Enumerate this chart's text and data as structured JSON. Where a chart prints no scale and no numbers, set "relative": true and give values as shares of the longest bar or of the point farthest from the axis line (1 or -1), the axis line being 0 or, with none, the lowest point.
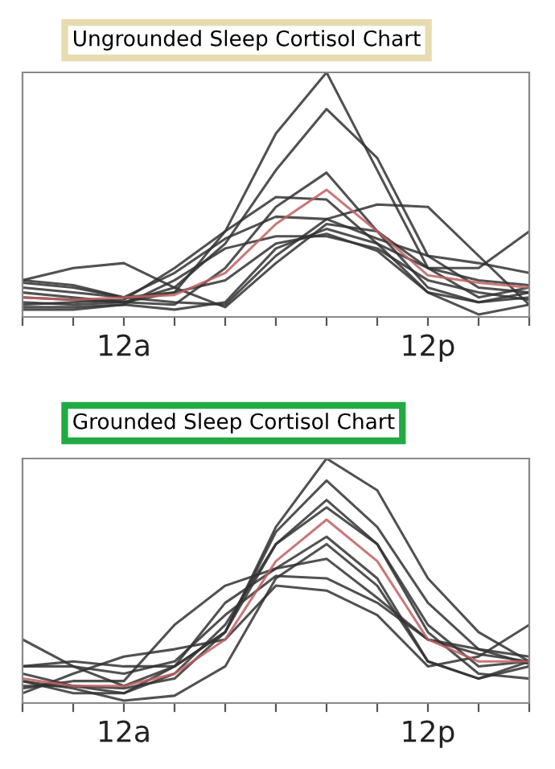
{
  "chart_data": [
    {
      "type": "line",
      "title": "Ungrounded Sleep Cortisol Chart",
      "relative": true,
      "tick_labels": "x",
      "grid": false,
      "legend": false,
      "marker": "none",
      "line_style": "solid",
      "categories": [
        null,
        null,
        "12a",
        null,
        null,
        null,
        null,
        null,
        "12p",
        null,
        null
      ],
      "series": [
        {
          "color": "#333333",
          "values": [
            0.14,
            0.12,
            0.08,
            0.1,
            0.35,
            0.75,
            1.0,
            0.6,
            0.2,
            0.08,
            0.12
          ]
        },
        {
          "color": "#333333",
          "values": [
            0.06,
            0.05,
            0.06,
            0.12,
            0.3,
            0.6,
            0.85,
            0.65,
            0.25,
            0.12,
            0.1
          ]
        },
        {
          "color": "#333333",
          "values": [
            0.08,
            0.07,
            0.06,
            0.05,
            0.2,
            0.45,
            0.59,
            0.35,
            0.12,
            0.06,
            0.08
          ]
        },
        {
          "color": "#333333",
          "values": [
            0.15,
            0.13,
            0.08,
            0.06,
            0.05,
            0.25,
            0.4,
            0.46,
            0.45,
            0.25,
            0.05
          ]
        },
        {
          "color": "#333333",
          "values": [
            0.05,
            0.06,
            0.07,
            0.2,
            0.35,
            0.49,
            0.48,
            0.3,
            0.2,
            0.2,
            0.35
          ]
        },
        {
          "color": "#333333",
          "values": [
            0.12,
            0.1,
            0.08,
            0.18,
            0.32,
            0.41,
            0.4,
            0.32,
            0.25,
            0.22,
            0.18
          ]
        },
        {
          "color": "#333333",
          "values": [
            0.15,
            0.2,
            0.22,
            0.12,
            0.04,
            0.22,
            0.38,
            0.35,
            0.2,
            0.15,
            0.13
          ]
        },
        {
          "color": "#333333",
          "values": [
            0.04,
            0.04,
            0.05,
            0.03,
            0.06,
            0.28,
            0.36,
            0.3,
            0.1,
            0.01,
            0.05
          ]
        },
        {
          "color": "#333333",
          "values": [
            0.1,
            0.08,
            0.06,
            0.1,
            0.15,
            0.3,
            0.34,
            0.27,
            0.1,
            0.06,
            0.1
          ]
        },
        {
          "color": "#333333",
          "values": [
            0.03,
            0.03,
            0.05,
            0.15,
            0.28,
            0.33,
            0.33,
            0.28,
            0.15,
            0.1,
            0.07
          ]
        },
        {
          "color": "#c06060",
          "values": [
            0.08,
            0.07,
            0.08,
            0.09,
            0.18,
            0.38,
            0.52,
            0.35,
            0.17,
            0.14,
            0.12
          ]
        }
      ]
    },
    {
      "type": "line",
      "title": "Grounded Sleep Cortisol Chart",
      "relative": true,
      "tick_labels": "x",
      "grid": false,
      "legend": false,
      "marker": "none",
      "line_style": "solid",
      "categories": [
        null,
        null,
        "12a",
        null,
        null,
        null,
        null,
        null,
        "12p",
        null,
        null
      ],
      "series": [
        {
          "color": "#333333",
          "values": [
            0.07,
            0.07,
            0.04,
            0.15,
            0.29,
            0.72,
            1.0,
            0.87,
            0.51,
            0.29,
            0.17
          ]
        },
        {
          "color": "#333333",
          "values": [
            0.12,
            0.07,
            0.06,
            0.1,
            0.29,
            0.7,
            0.91,
            0.72,
            0.41,
            0.22,
            0.16
          ]
        },
        {
          "color": "#333333",
          "values": [
            0.09,
            0.04,
            0.04,
            0.12,
            0.32,
            0.65,
            0.83,
            0.65,
            0.32,
            0.15,
            0.17
          ]
        },
        {
          "color": "#333333",
          "values": [
            0.26,
            0.15,
            0.07,
            0.15,
            0.41,
            0.55,
            0.68,
            0.51,
            0.17,
            0.1,
            0.17
          ]
        },
        {
          "color": "#333333",
          "values": [
            0.06,
            0.09,
            0.09,
            0.32,
            0.48,
            0.55,
            0.59,
            0.43,
            0.26,
            0.2,
            0.17
          ]
        },
        {
          "color": "#333333",
          "values": [
            0.15,
            0.15,
            0.12,
            0.17,
            0.36,
            0.52,
            0.51,
            0.41,
            0.26,
            0.22,
            0.19
          ]
        },
        {
          "color": "#333333",
          "values": [
            0.04,
            0.12,
            0.19,
            0.22,
            0.26,
            0.48,
            0.46,
            0.36,
            0.15,
            0.19,
            0.32
          ]
        },
        {
          "color": "#333333",
          "values": [
            0.09,
            0.06,
            0.01,
            0.03,
            0.15,
            0.51,
            0.65,
            0.48,
            0.17,
            0.1,
            0.15
          ]
        },
        {
          "color": "#333333",
          "values": [
            0.15,
            0.17,
            0.15,
            0.15,
            0.29,
            0.65,
            0.8,
            0.65,
            0.29,
            0.12,
            0.1
          ]
        },
        {
          "color": "#c06060",
          "values": [
            0.1,
            0.07,
            0.07,
            0.12,
            0.26,
            0.58,
            0.75,
            0.58,
            0.26,
            0.17,
            0.17
          ]
        }
      ]
    }
  ]
}
